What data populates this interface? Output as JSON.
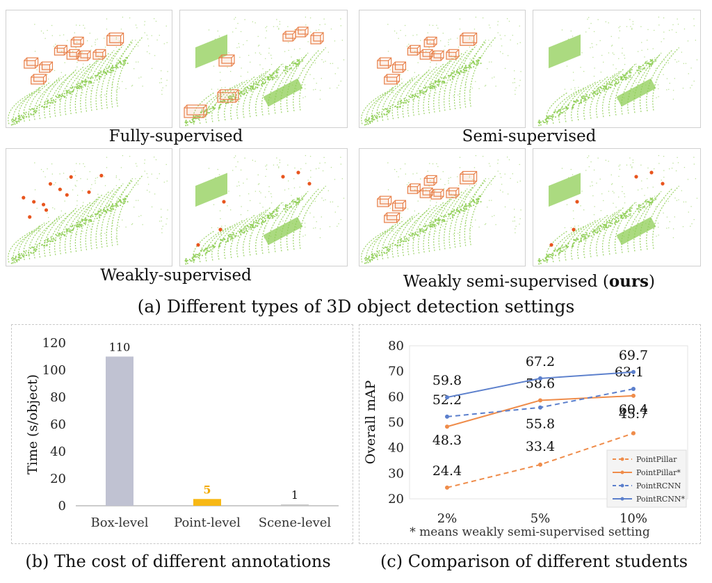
{
  "panel_a": {
    "quadrants": [
      {
        "label": "Fully-supervised",
        "left_annotation": "boxes",
        "right_annotation": "boxes"
      },
      {
        "label": "Semi-supervised",
        "left_annotation": "boxes",
        "right_annotation": "none"
      },
      {
        "label": "Weakly-supervised",
        "left_annotation": "points",
        "right_annotation": "points"
      },
      {
        "label_prefix": "Weakly semi-supervised (",
        "label_bold": "ours",
        "label_suffix": ")",
        "left_annotation": "boxes",
        "right_annotation": "points"
      }
    ],
    "caption": "(a) Different types of 3D object detection settings"
  },
  "panel_b": {
    "caption": "(b) The cost of different annotations"
  },
  "panel_c": {
    "caption": "(c) Comparison of different students",
    "footnote": "* means weakly semi-supervised setting"
  },
  "colors": {
    "lidar": "#8fce55",
    "box": "#e8804a",
    "point_marker": "#e8551e",
    "bar_box": "#c0c2d2",
    "bar_point": "#f7b815",
    "bar_scene": "#c8c8c8",
    "pointpillar": "#ef8c4a",
    "pointrcnn": "#5b7fcc"
  },
  "chart_data": [
    {
      "type": "bar",
      "categories": [
        "Box-level",
        "Point-level",
        "Scene-level"
      ],
      "values": [
        110,
        5,
        1
      ],
      "data_labels": [
        "110",
        "5",
        "1"
      ],
      "ylabel": "Time (s/object)",
      "ylim": [
        0,
        120
      ],
      "yticks": [
        0,
        20,
        40,
        60,
        80,
        100,
        120
      ],
      "grid": false
    },
    {
      "type": "line",
      "categories": [
        "2%",
        "5%",
        "10%"
      ],
      "ylabel": "Overall  mAP",
      "ylim": [
        20,
        80
      ],
      "yticks": [
        20,
        30,
        40,
        50,
        60,
        70,
        80
      ],
      "legend_position": "bottom-right",
      "series": [
        {
          "name": "PointPillar",
          "values": [
            24.4,
            33.4,
            45.7
          ],
          "dashed": true,
          "color": "#ef8c4a"
        },
        {
          "name": "PointPillar*",
          "values": [
            48.3,
            58.6,
            60.4
          ],
          "dashed": false,
          "color": "#ef8c4a"
        },
        {
          "name": "PointRCNN",
          "values": [
            52.2,
            55.8,
            63.1
          ],
          "dashed": true,
          "color": "#5b7fcc"
        },
        {
          "name": "PointRCNN*",
          "values": [
            59.8,
            67.2,
            69.7
          ],
          "dashed": false,
          "color": "#5b7fcc"
        }
      ],
      "data_labels": [
        [
          "24.4",
          "33.4",
          "45.7"
        ],
        [
          "48.3",
          "58.6",
          "60.4"
        ],
        [
          "52.2",
          "55.8",
          "63.1"
        ],
        [
          "59.8",
          "67.2",
          "69.7"
        ]
      ]
    }
  ]
}
